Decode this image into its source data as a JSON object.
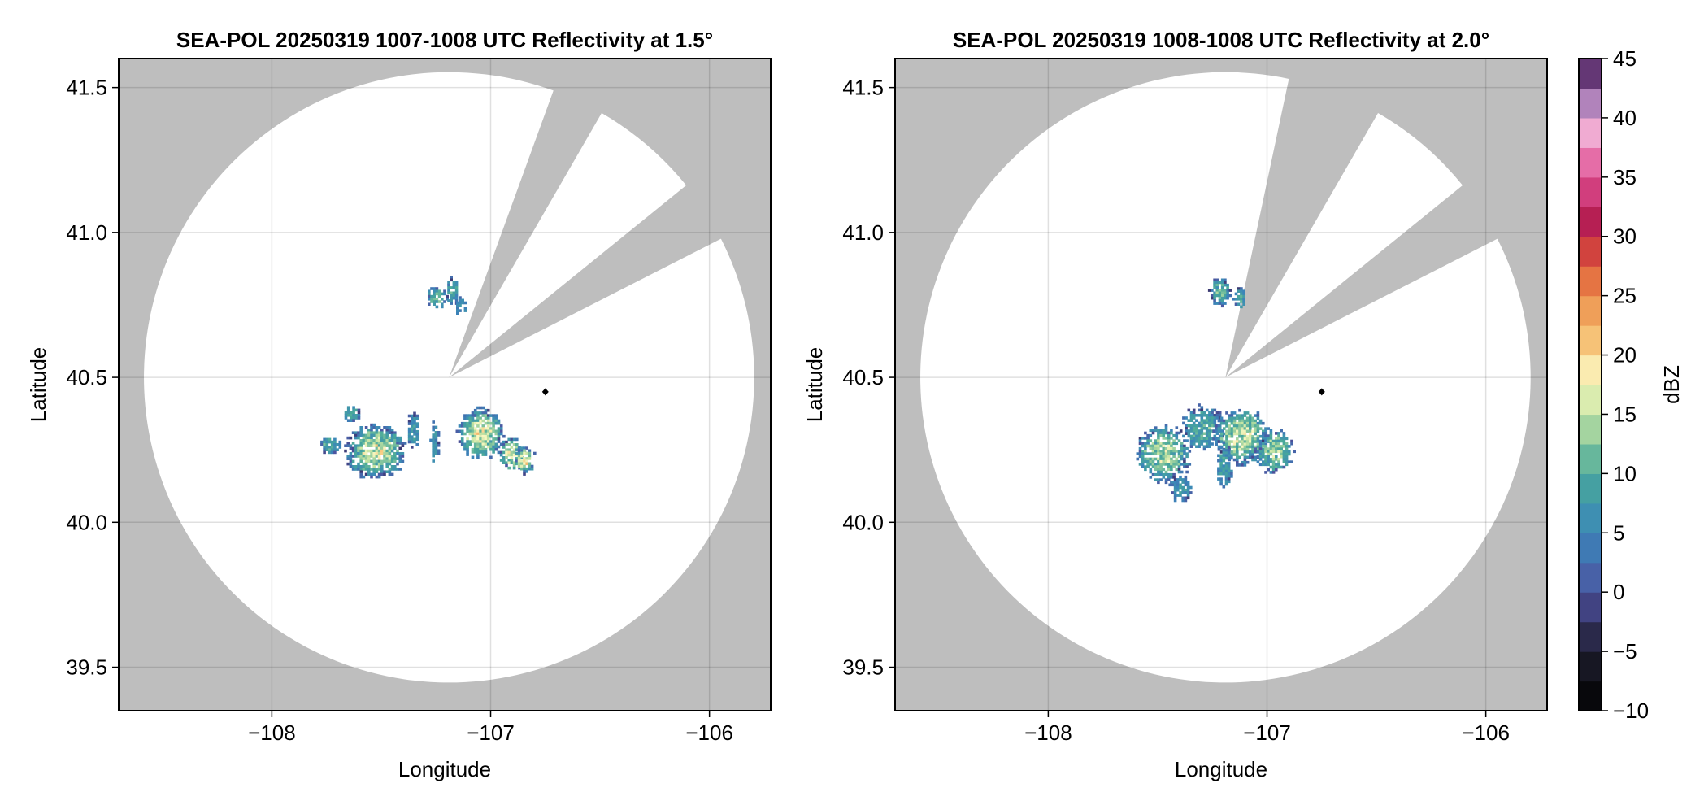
{
  "chart_data": [
    {
      "type": "heatmap",
      "title": "SEA-POL 20250319 1007-1008 UTC Reflectivity at 1.5°",
      "xlabel": "Longitude",
      "ylabel": "Latitude",
      "xlim": [
        -108.7,
        -105.72
      ],
      "ylim": [
        39.35,
        41.6
      ],
      "xticks": [
        -108,
        -107,
        -106
      ],
      "xtick_labels": [
        "−108",
        "−107",
        "−106"
      ],
      "yticks": [
        39.5,
        40.0,
        40.5,
        41.0,
        41.5
      ],
      "ytick_labels": [
        "39.5",
        "40.0",
        "40.5",
        "41.0",
        "41.5"
      ],
      "grid": true,
      "background_color": "#bebebe",
      "radar_center": [
        -107.19,
        40.5
      ],
      "radar_range_deg": 1.2,
      "blocked_sectors": [
        {
          "start_az": 20,
          "end_az": 30
        },
        {
          "start_az": 51,
          "end_az": 63
        }
      ],
      "marker": {
        "lon": -106.75,
        "lat": 40.45
      },
      "echo_clusters": [
        {
          "lon": -107.53,
          "lat": 40.25,
          "rx": 0.14,
          "ry": 0.1,
          "peak_dbz": 20
        },
        {
          "lon": -107.74,
          "lat": 40.27,
          "rx": 0.05,
          "ry": 0.03,
          "peak_dbz": 14
        },
        {
          "lon": -107.64,
          "lat": 40.38,
          "rx": 0.04,
          "ry": 0.03,
          "peak_dbz": 13
        },
        {
          "lon": -107.36,
          "lat": 40.32,
          "rx": 0.03,
          "ry": 0.07,
          "peak_dbz": 10
        },
        {
          "lon": -107.26,
          "lat": 40.28,
          "rx": 0.02,
          "ry": 0.08,
          "peak_dbz": 8
        },
        {
          "lon": -107.05,
          "lat": 40.31,
          "rx": 0.11,
          "ry": 0.09,
          "peak_dbz": 21
        },
        {
          "lon": -106.91,
          "lat": 40.24,
          "rx": 0.06,
          "ry": 0.06,
          "peak_dbz": 22
        },
        {
          "lon": -106.85,
          "lat": 40.22,
          "rx": 0.05,
          "ry": 0.05,
          "peak_dbz": 23
        },
        {
          "lon": -107.25,
          "lat": 40.78,
          "rx": 0.05,
          "ry": 0.04,
          "peak_dbz": 15
        },
        {
          "lon": -107.18,
          "lat": 40.8,
          "rx": 0.03,
          "ry": 0.05,
          "peak_dbz": 12
        },
        {
          "lon": -107.14,
          "lat": 40.75,
          "rx": 0.03,
          "ry": 0.03,
          "peak_dbz": 10
        }
      ]
    },
    {
      "type": "heatmap",
      "title": "SEA-POL 20250319 1008-1008 UTC Reflectivity at 2.0°",
      "xlabel": "Longitude",
      "ylabel": "Latitude",
      "xlim": [
        -108.7,
        -105.72
      ],
      "ylim": [
        39.35,
        41.6
      ],
      "xticks": [
        -108,
        -107,
        -106
      ],
      "xtick_labels": [
        "−108",
        "−107",
        "−106"
      ],
      "yticks": [
        39.5,
        40.0,
        40.5,
        41.0,
        41.5
      ],
      "ytick_labels": [
        "39.5",
        "40.0",
        "40.5",
        "41.0",
        "41.5"
      ],
      "grid": true,
      "background_color": "#bebebe",
      "radar_center": [
        -107.19,
        40.5
      ],
      "radar_range_deg": 1.2,
      "blocked_sectors": [
        {
          "start_az": 12,
          "end_az": 30
        },
        {
          "start_az": 51,
          "end_az": 63
        }
      ],
      "marker": {
        "lon": -106.75,
        "lat": 40.45
      },
      "echo_clusters": [
        {
          "lon": -107.48,
          "lat": 40.24,
          "rx": 0.13,
          "ry": 0.1,
          "peak_dbz": 18
        },
        {
          "lon": -107.3,
          "lat": 40.33,
          "rx": 0.1,
          "ry": 0.08,
          "peak_dbz": 13
        },
        {
          "lon": -107.12,
          "lat": 40.3,
          "rx": 0.13,
          "ry": 0.1,
          "peak_dbz": 20
        },
        {
          "lon": -106.97,
          "lat": 40.25,
          "rx": 0.09,
          "ry": 0.08,
          "peak_dbz": 17
        },
        {
          "lon": -107.2,
          "lat": 40.2,
          "rx": 0.04,
          "ry": 0.08,
          "peak_dbz": 11
        },
        {
          "lon": -107.4,
          "lat": 40.12,
          "rx": 0.05,
          "ry": 0.05,
          "peak_dbz": 10
        },
        {
          "lon": -107.22,
          "lat": 40.8,
          "rx": 0.05,
          "ry": 0.05,
          "peak_dbz": 15
        },
        {
          "lon": -107.13,
          "lat": 40.78,
          "rx": 0.03,
          "ry": 0.04,
          "peak_dbz": 11
        }
      ]
    }
  ],
  "colorbar": {
    "label": "dBZ",
    "min": -10,
    "max": 45,
    "step": 2.5,
    "ticks": [
      -10,
      -5,
      0,
      5,
      10,
      15,
      20,
      25,
      30,
      35,
      40,
      45
    ],
    "tick_labels": [
      "−10",
      "−5",
      "0",
      "5",
      "10",
      "15",
      "20",
      "25",
      "30",
      "35",
      "40",
      "45"
    ],
    "stops": [
      {
        "v": -10,
        "c": "#000000"
      },
      {
        "v": -5,
        "c": "#1e1e2e"
      },
      {
        "v": -2,
        "c": "#3a3870"
      },
      {
        "v": 0,
        "c": "#4c55a0"
      },
      {
        "v": 5,
        "c": "#3b86ba"
      },
      {
        "v": 10,
        "c": "#48a89a"
      },
      {
        "v": 15,
        "c": "#c3e3a2"
      },
      {
        "v": 18,
        "c": "#fbf8c2"
      },
      {
        "v": 21,
        "c": "#f7c57a"
      },
      {
        "v": 25,
        "c": "#ec8d4a"
      },
      {
        "v": 28,
        "c": "#db5038"
      },
      {
        "v": 31,
        "c": "#b31c4f"
      },
      {
        "v": 35,
        "c": "#df4e92"
      },
      {
        "v": 39,
        "c": "#f1b1d6"
      },
      {
        "v": 42,
        "c": "#9b74b2"
      },
      {
        "v": 45,
        "c": "#3d0b49"
      }
    ]
  }
}
